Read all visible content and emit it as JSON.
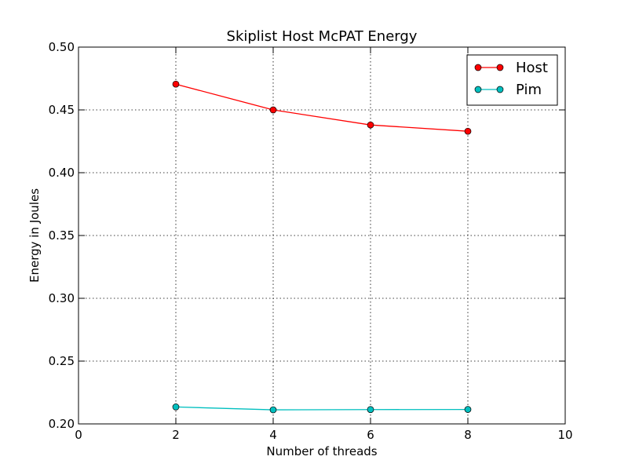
{
  "chart_data": {
    "type": "line",
    "title": "Skiplist Host McPAT Energy",
    "xlabel": "Number of threads",
    "ylabel": "Energy in Joules",
    "xlim": [
      0,
      10
    ],
    "ylim": [
      0.2,
      0.5
    ],
    "xticks": [
      0,
      2,
      4,
      6,
      8,
      10
    ],
    "yticks": [
      0.2,
      0.25,
      0.3,
      0.35,
      0.4,
      0.45,
      0.5
    ],
    "xtick_labels": [
      "0",
      "2",
      "4",
      "6",
      "8",
      "10"
    ],
    "ytick_labels": [
      "0.20",
      "0.25",
      "0.30",
      "0.35",
      "0.40",
      "0.45",
      "0.50"
    ],
    "grid": true,
    "legend_position": "top-right",
    "x": [
      2,
      4,
      6,
      8
    ],
    "series": [
      {
        "name": "Host",
        "values": [
          0.4705,
          0.45,
          0.438,
          0.433
        ],
        "color": "#ff0000",
        "marker": "circle"
      },
      {
        "name": "Pim",
        "values": [
          0.2135,
          0.2112,
          0.2114,
          0.2115
        ],
        "color": "#00bfbf",
        "marker": "circle"
      }
    ]
  }
}
